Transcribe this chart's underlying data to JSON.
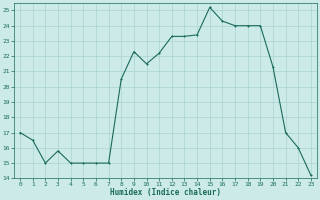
{
  "x": [
    0,
    1,
    2,
    3,
    4,
    5,
    6,
    7,
    8,
    9,
    10,
    11,
    12,
    13,
    14,
    15,
    16,
    17,
    18,
    19,
    20,
    21,
    22,
    23
  ],
  "y": [
    17,
    16.5,
    15,
    15.8,
    15,
    15,
    15,
    15,
    20.5,
    22.3,
    21.5,
    22.2,
    23.3,
    23.3,
    23.4,
    25.2,
    24.3,
    24,
    24,
    24,
    21.3,
    17,
    16,
    14.2
  ],
  "line_color": "#1a6b5a",
  "marker_color": "#1a6b5a",
  "bg_color": "#cceae8",
  "grid_color": "#aad4d0",
  "xlabel": "Humidex (Indice chaleur)",
  "xlabel_color": "#1a6b5a",
  "xlim": [
    -0.5,
    23.5
  ],
  "ylim": [
    14,
    25.5
  ],
  "yticks": [
    14,
    15,
    16,
    17,
    18,
    19,
    20,
    21,
    22,
    23,
    24,
    25
  ],
  "xticks": [
    0,
    1,
    2,
    3,
    4,
    5,
    6,
    7,
    8,
    9,
    10,
    11,
    12,
    13,
    14,
    15,
    16,
    17,
    18,
    19,
    20,
    21,
    22,
    23
  ],
  "tick_label_color": "#1a6b5a",
  "axis_color": "#1a6b5a",
  "linewidth": 0.8,
  "markersize": 2.0
}
